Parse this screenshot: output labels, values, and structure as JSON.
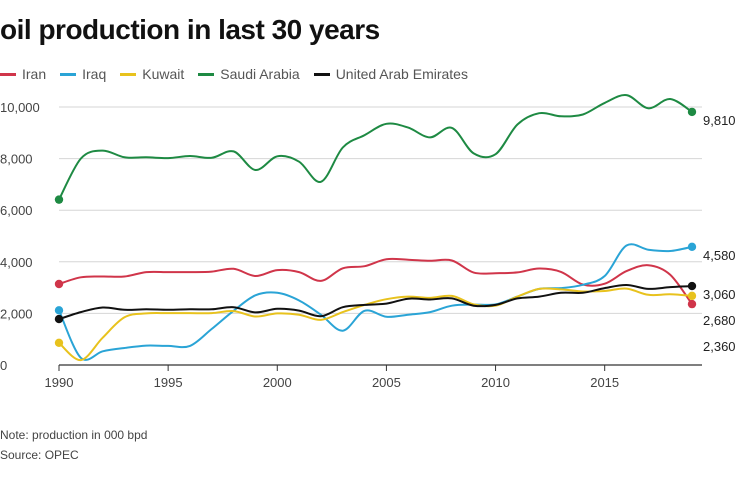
{
  "chart_data": {
    "type": "line",
    "title": "oil production in last 30 years",
    "xlabel": "",
    "ylabel": "",
    "x": [
      1990,
      1991,
      1992,
      1993,
      1994,
      1995,
      1996,
      1997,
      1998,
      1999,
      2000,
      2001,
      2002,
      2003,
      2004,
      2005,
      2006,
      2007,
      2008,
      2009,
      2010,
      2011,
      2012,
      2013,
      2014,
      2015,
      2016,
      2017,
      2018,
      2019
    ],
    "xlim": [
      1990,
      2019
    ],
    "ylim": [
      0,
      10000
    ],
    "x_ticks": [
      1990,
      1995,
      2000,
      2005,
      2010,
      2015
    ],
    "y_ticks": [
      0,
      2000,
      4000,
      6000,
      8000,
      10000
    ],
    "y_tick_labels": [
      "0",
      "2,000",
      "4,000",
      "6,000",
      "8,000",
      "10,000"
    ],
    "grid": "horizontal",
    "legend_position": "top-left",
    "series": [
      {
        "name": "Iran",
        "color": "#d0354a",
        "end_label": "2,360",
        "values": [
          3140,
          3400,
          3430,
          3430,
          3600,
          3600,
          3600,
          3620,
          3730,
          3450,
          3680,
          3600,
          3260,
          3750,
          3830,
          4100,
          4080,
          4040,
          4050,
          3580,
          3560,
          3590,
          3740,
          3610,
          3120,
          3150,
          3640,
          3870,
          3500,
          2360
        ]
      },
      {
        "name": "Iraq",
        "color": "#2aa4d6",
        "end_label": "4,580",
        "values": [
          2120,
          280,
          530,
          660,
          750,
          740,
          740,
          1400,
          2100,
          2700,
          2800,
          2500,
          1950,
          1330,
          2100,
          1870,
          1950,
          2050,
          2300,
          2340,
          2350,
          2650,
          2950,
          2980,
          3110,
          3450,
          4630,
          4470,
          4420,
          4580
        ]
      },
      {
        "name": "Kuwait",
        "color": "#e8c21d",
        "end_label": "2,680",
        "values": [
          860,
          190,
          1060,
          1850,
          2000,
          2010,
          2010,
          2010,
          2090,
          1880,
          2000,
          1950,
          1750,
          2050,
          2330,
          2550,
          2650,
          2600,
          2680,
          2350,
          2300,
          2650,
          2950,
          2930,
          2850,
          2870,
          2960,
          2720,
          2740,
          2680
        ]
      },
      {
        "name": "Saudi Arabia",
        "color": "#1e8a43",
        "end_label": "9,810",
        "values": [
          6410,
          8000,
          8310,
          8050,
          8050,
          8020,
          8100,
          8030,
          8280,
          7560,
          8090,
          7880,
          7100,
          8430,
          8910,
          9350,
          9200,
          8820,
          9190,
          8200,
          8170,
          9320,
          9760,
          9640,
          9710,
          10160,
          10460,
          9950,
          10310,
          9810
        ]
      },
      {
        "name": "United Arab Emirates",
        "color": "#111111",
        "end_label": "3,060",
        "values": [
          1780,
          2050,
          2230,
          2140,
          2160,
          2140,
          2160,
          2160,
          2240,
          2040,
          2180,
          2110,
          1890,
          2240,
          2330,
          2380,
          2570,
          2540,
          2580,
          2300,
          2330,
          2580,
          2650,
          2800,
          2800,
          2980,
          3100,
          2950,
          3020,
          3060
        ]
      }
    ]
  },
  "footnotes": {
    "note": "Note: production in 000 bpd",
    "source": "Source: OPEC"
  }
}
